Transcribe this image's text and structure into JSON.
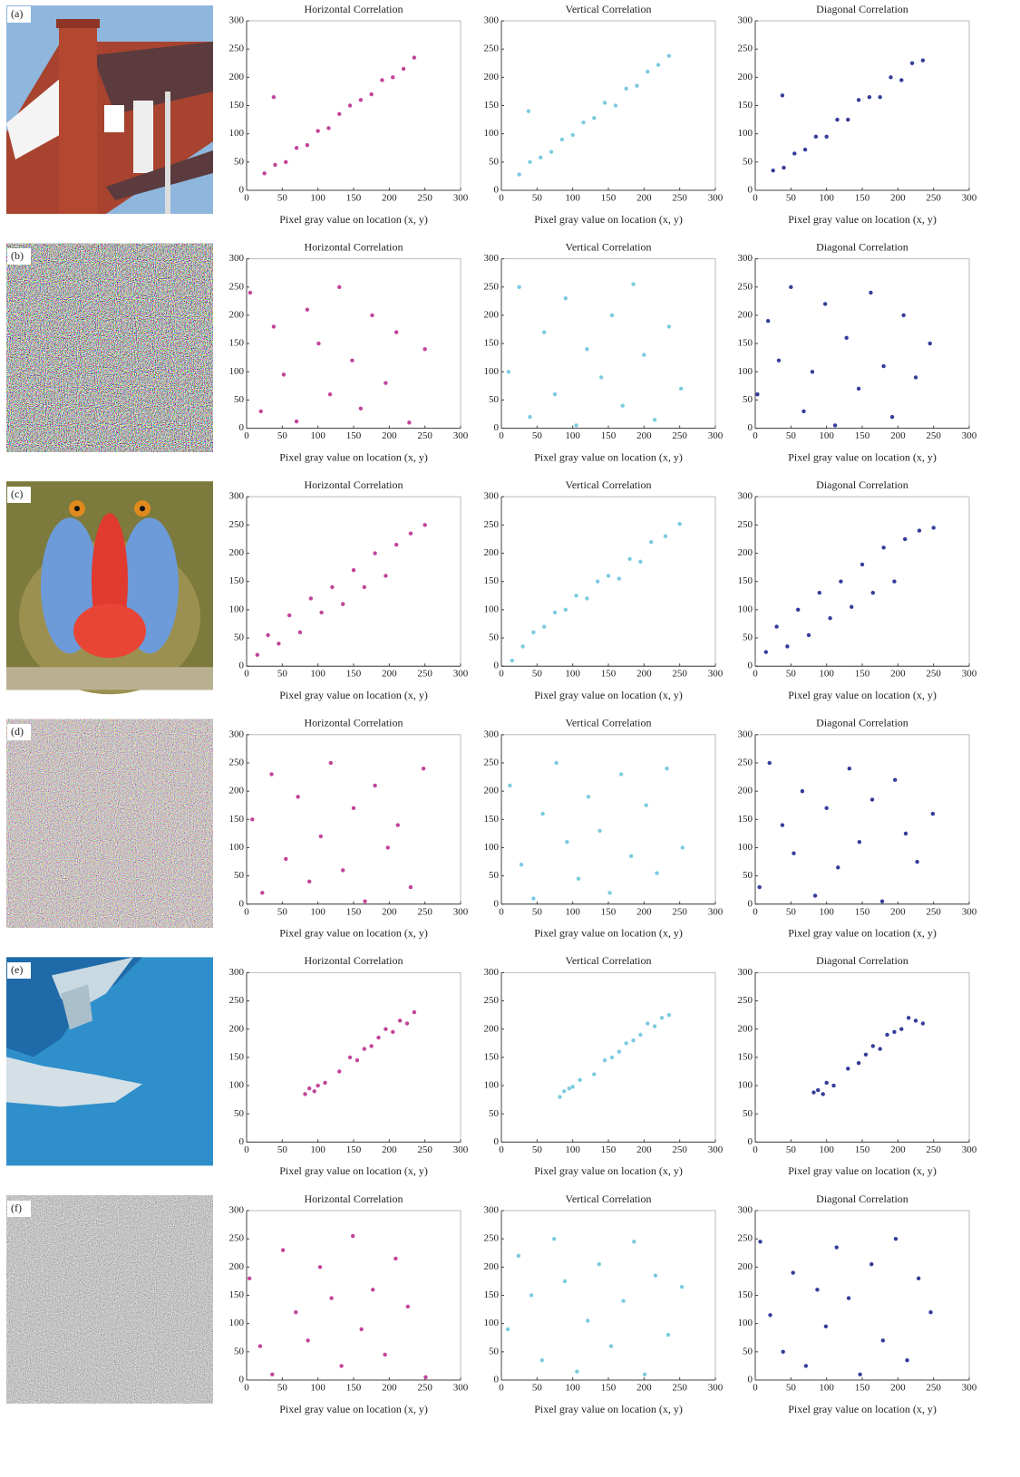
{
  "panels": [
    {
      "label": "(a)"
    },
    {
      "label": "(b)"
    },
    {
      "label": "(c)"
    },
    {
      "label": "(d)"
    },
    {
      "label": "(e)"
    },
    {
      "label": "(f)"
    }
  ],
  "chart_data": [
    {
      "type": "scatter",
      "title": "Horizontal Correlation",
      "x_label": "Pixel gray value on location (x, y)",
      "color": "#c2449a",
      "xlim": [
        0,
        300
      ],
      "ylim": [
        0,
        300
      ],
      "xticks": [
        0,
        50,
        100,
        150,
        200,
        250,
        300
      ],
      "yticks": [
        0,
        50,
        100,
        150,
        200,
        250,
        300
      ],
      "x": [
        25,
        40,
        55,
        70,
        85,
        100,
        115,
        130,
        145,
        160,
        175,
        190,
        205,
        220,
        235,
        38
      ],
      "values": [
        30,
        45,
        50,
        75,
        80,
        105,
        110,
        135,
        150,
        160,
        170,
        195,
        200,
        215,
        235,
        165
      ]
    },
    {
      "type": "scatter",
      "title": "Vertical Correlation",
      "x_label": "Pixel gray value on location (x, y)",
      "color": "#7ccbe0",
      "xlim": [
        0,
        300
      ],
      "ylim": [
        0,
        300
      ],
      "xticks": [
        0,
        50,
        100,
        150,
        200,
        250,
        300
      ],
      "yticks": [
        0,
        50,
        100,
        150,
        200,
        250,
        300
      ],
      "x": [
        25,
        40,
        55,
        70,
        85,
        100,
        115,
        130,
        145,
        160,
        175,
        190,
        205,
        220,
        235,
        38
      ],
      "values": [
        28,
        50,
        58,
        68,
        90,
        98,
        120,
        128,
        155,
        150,
        180,
        185,
        210,
        222,
        238,
        140
      ]
    },
    {
      "type": "scatter",
      "title": "Diagonal Correlation",
      "x_label": "Pixel gray value on location (x, y)",
      "color": "#353d9a",
      "xlim": [
        0,
        300
      ],
      "ylim": [
        0,
        300
      ],
      "xticks": [
        0,
        50,
        100,
        150,
        200,
        250,
        300
      ],
      "yticks": [
        0,
        50,
        100,
        150,
        200,
        250,
        300
      ],
      "x": [
        25,
        40,
        55,
        70,
        85,
        100,
        115,
        130,
        145,
        160,
        175,
        190,
        205,
        220,
        235,
        38
      ],
      "values": [
        35,
        40,
        65,
        72,
        95,
        95,
        125,
        125,
        160,
        165,
        165,
        200,
        195,
        225,
        230,
        168
      ]
    },
    {
      "type": "scatter",
      "title": "Horizontal Correlation",
      "x_label": "Pixel gray value on location (x, y)",
      "color": "#c2449a",
      "xlim": [
        0,
        300
      ],
      "ylim": [
        0,
        300
      ],
      "xticks": [
        0,
        50,
        100,
        150,
        200,
        250,
        300
      ],
      "yticks": [
        0,
        50,
        100,
        150,
        200,
        250,
        300
      ],
      "x": [
        5,
        20,
        38,
        52,
        70,
        85,
        101,
        117,
        130,
        148,
        160,
        176,
        195,
        210,
        228,
        250
      ],
      "values": [
        240,
        30,
        180,
        95,
        12,
        210,
        150,
        60,
        250,
        120,
        35,
        200,
        80,
        170,
        10,
        140
      ]
    },
    {
      "type": "scatter",
      "title": "Vertical Correlation",
      "x_label": "Pixel gray value on location (x, y)",
      "color": "#7ccbe0",
      "xlim": [
        0,
        300
      ],
      "ylim": [
        0,
        300
      ],
      "xticks": [
        0,
        50,
        100,
        150,
        200,
        250,
        300
      ],
      "yticks": [
        0,
        50,
        100,
        150,
        200,
        250,
        300
      ],
      "x": [
        10,
        25,
        40,
        60,
        75,
        90,
        105,
        120,
        140,
        155,
        170,
        185,
        200,
        215,
        235,
        252
      ],
      "values": [
        100,
        250,
        20,
        170,
        60,
        230,
        5,
        140,
        90,
        200,
        40,
        255,
        130,
        15,
        180,
        70
      ]
    },
    {
      "type": "scatter",
      "title": "Diagonal Correlation",
      "x_label": "Pixel gray value on location (x, y)",
      "color": "#353d9a",
      "xlim": [
        0,
        300
      ],
      "ylim": [
        0,
        300
      ],
      "xticks": [
        0,
        50,
        100,
        150,
        200,
        250,
        300
      ],
      "yticks": [
        0,
        50,
        100,
        150,
        200,
        250,
        300
      ],
      "x": [
        3,
        18,
        33,
        50,
        68,
        80,
        98,
        112,
        128,
        145,
        162,
        180,
        192,
        208,
        225,
        245
      ],
      "values": [
        60,
        190,
        120,
        250,
        30,
        100,
        220,
        5,
        160,
        70,
        240,
        110,
        20,
        200,
        90,
        150
      ]
    },
    {
      "type": "scatter",
      "title": "Horizontal Correlation",
      "x_label": "Pixel gray value on location (x, y)",
      "color": "#c2449a",
      "xlim": [
        0,
        300
      ],
      "ylim": [
        0,
        300
      ],
      "xticks": [
        0,
        50,
        100,
        150,
        200,
        250,
        300
      ],
      "yticks": [
        0,
        50,
        100,
        150,
        200,
        250,
        300
      ],
      "x": [
        15,
        30,
        45,
        60,
        75,
        90,
        105,
        120,
        135,
        150,
        165,
        180,
        195,
        210,
        230,
        250
      ],
      "values": [
        20,
        55,
        40,
        90,
        60,
        120,
        95,
        140,
        110,
        170,
        140,
        200,
        160,
        215,
        235,
        250
      ]
    },
    {
      "type": "scatter",
      "title": "Vertical Correlation",
      "x_label": "Pixel gray value on location (x, y)",
      "color": "#7ccbe0",
      "xlim": [
        0,
        300
      ],
      "ylim": [
        0,
        300
      ],
      "xticks": [
        0,
        50,
        100,
        150,
        200,
        250,
        300
      ],
      "yticks": [
        0,
        50,
        100,
        150,
        200,
        250,
        300
      ],
      "x": [
        15,
        30,
        45,
        60,
        75,
        90,
        105,
        120,
        135,
        150,
        165,
        180,
        195,
        210,
        230,
        250
      ],
      "values": [
        10,
        35,
        60,
        70,
        95,
        100,
        125,
        120,
        150,
        160,
        155,
        190,
        185,
        220,
        230,
        252
      ]
    },
    {
      "type": "scatter",
      "title": "Diagonal Correlation",
      "x_label": "Pixel gray value on location (x, y)",
      "color": "#353d9a",
      "xlim": [
        0,
        300
      ],
      "ylim": [
        0,
        300
      ],
      "xticks": [
        0,
        50,
        100,
        150,
        200,
        250,
        300
      ],
      "yticks": [
        0,
        50,
        100,
        150,
        200,
        250,
        300
      ],
      "x": [
        15,
        30,
        45,
        60,
        75,
        90,
        105,
        120,
        135,
        150,
        165,
        180,
        195,
        210,
        230,
        250
      ],
      "values": [
        25,
        70,
        35,
        100,
        55,
        130,
        85,
        150,
        105,
        180,
        130,
        210,
        150,
        225,
        240,
        245
      ]
    },
    {
      "type": "scatter",
      "title": "Horizontal Correlation",
      "x_label": "Pixel gray value on location (x, y)",
      "color": "#c2449a",
      "xlim": [
        0,
        300
      ],
      "ylim": [
        0,
        300
      ],
      "xticks": [
        0,
        50,
        100,
        150,
        200,
        250,
        300
      ],
      "yticks": [
        0,
        50,
        100,
        150,
        200,
        250,
        300
      ],
      "x": [
        8,
        22,
        35,
        55,
        72,
        88,
        104,
        118,
        135,
        150,
        166,
        180,
        198,
        212,
        230,
        248
      ],
      "values": [
        150,
        20,
        230,
        80,
        190,
        40,
        120,
        250,
        60,
        170,
        5,
        210,
        100,
        140,
        30,
        240
      ]
    },
    {
      "type": "scatter",
      "title": "Vertical Correlation",
      "x_label": "Pixel gray value on location (x, y)",
      "color": "#7ccbe0",
      "xlim": [
        0,
        300
      ],
      "ylim": [
        0,
        300
      ],
      "xticks": [
        0,
        50,
        100,
        150,
        200,
        250,
        300
      ],
      "yticks": [
        0,
        50,
        100,
        150,
        200,
        250,
        300
      ],
      "x": [
        12,
        28,
        45,
        58,
        77,
        92,
        108,
        122,
        138,
        152,
        168,
        182,
        203,
        218,
        232,
        254
      ],
      "values": [
        210,
        70,
        10,
        160,
        250,
        110,
        45,
        190,
        130,
        20,
        230,
        85,
        175,
        55,
        240,
        100
      ]
    },
    {
      "type": "scatter",
      "title": "Diagonal Correlation",
      "x_label": "Pixel gray value on location (x, y)",
      "color": "#353d9a",
      "xlim": [
        0,
        300
      ],
      "ylim": [
        0,
        300
      ],
      "xticks": [
        0,
        50,
        100,
        150,
        200,
        250,
        300
      ],
      "yticks": [
        0,
        50,
        100,
        150,
        200,
        250,
        300
      ],
      "x": [
        6,
        20,
        38,
        54,
        66,
        84,
        100,
        116,
        132,
        146,
        164,
        178,
        196,
        211,
        227,
        249
      ],
      "values": [
        30,
        250,
        140,
        90,
        200,
        15,
        170,
        65,
        240,
        110,
        185,
        5,
        220,
        125,
        75,
        160
      ]
    },
    {
      "type": "scatter",
      "title": "Horizontal Correlation",
      "x_label": "Pixel gray value on location (x, y)",
      "color": "#c2449a",
      "xlim": [
        0,
        300
      ],
      "ylim": [
        0,
        300
      ],
      "xticks": [
        0,
        50,
        100,
        150,
        200,
        250,
        300
      ],
      "yticks": [
        0,
        50,
        100,
        150,
        200,
        250,
        300
      ],
      "x": [
        82,
        88,
        95,
        100,
        110,
        130,
        145,
        155,
        165,
        175,
        185,
        195,
        205,
        215,
        225,
        235
      ],
      "values": [
        85,
        95,
        90,
        100,
        105,
        125,
        150,
        145,
        165,
        170,
        185,
        200,
        195,
        215,
        210,
        230
      ]
    },
    {
      "type": "scatter",
      "title": "Vertical Correlation",
      "x_label": "Pixel gray value on location (x, y)",
      "color": "#7ccbe0",
      "xlim": [
        0,
        300
      ],
      "ylim": [
        0,
        300
      ],
      "xticks": [
        0,
        50,
        100,
        150,
        200,
        250,
        300
      ],
      "yticks": [
        0,
        50,
        100,
        150,
        200,
        250,
        300
      ],
      "x": [
        82,
        88,
        95,
        100,
        110,
        130,
        145,
        155,
        165,
        175,
        185,
        195,
        205,
        215,
        225,
        235
      ],
      "values": [
        80,
        90,
        95,
        98,
        110,
        120,
        145,
        150,
        160,
        175,
        180,
        190,
        210,
        205,
        220,
        225
      ]
    },
    {
      "type": "scatter",
      "title": "Diagonal Correlation",
      "x_label": "Pixel gray value on location (x, y)",
      "color": "#353d9a",
      "xlim": [
        0,
        300
      ],
      "ylim": [
        0,
        300
      ],
      "xticks": [
        0,
        50,
        100,
        150,
        200,
        250,
        300
      ],
      "yticks": [
        0,
        50,
        100,
        150,
        200,
        250,
        300
      ],
      "x": [
        82,
        88,
        95,
        100,
        110,
        130,
        145,
        155,
        165,
        175,
        185,
        195,
        205,
        215,
        225,
        235
      ],
      "values": [
        88,
        92,
        85,
        105,
        100,
        130,
        140,
        155,
        170,
        165,
        190,
        195,
        200,
        220,
        215,
        210
      ]
    },
    {
      "type": "scatter",
      "title": "Horizontal Correlation",
      "x_label": "Pixel gray value on location (x, y)",
      "color": "#c2449a",
      "xlim": [
        0,
        300
      ],
      "ylim": [
        0,
        300
      ],
      "xticks": [
        0,
        50,
        100,
        150,
        200,
        250,
        300
      ],
      "yticks": [
        0,
        50,
        100,
        150,
        200,
        250,
        300
      ],
      "x": [
        4,
        19,
        36,
        51,
        69,
        86,
        103,
        119,
        133,
        149,
        161,
        177,
        194,
        209,
        226,
        251
      ],
      "values": [
        180,
        60,
        10,
        230,
        120,
        70,
        200,
        145,
        25,
        255,
        90,
        160,
        45,
        215,
        130,
        5
      ]
    },
    {
      "type": "scatter",
      "title": "Vertical Correlation",
      "x_label": "Pixel gray value on location (x, y)",
      "color": "#7ccbe0",
      "xlim": [
        0,
        300
      ],
      "ylim": [
        0,
        300
      ],
      "xticks": [
        0,
        50,
        100,
        150,
        200,
        250,
        300
      ],
      "yticks": [
        0,
        50,
        100,
        150,
        200,
        250,
        300
      ],
      "x": [
        9,
        24,
        42,
        57,
        74,
        89,
        106,
        121,
        137,
        154,
        171,
        186,
        201,
        216,
        234,
        253
      ],
      "values": [
        90,
        220,
        150,
        35,
        250,
        175,
        15,
        105,
        205,
        60,
        140,
        245,
        10,
        185,
        80,
        165
      ]
    },
    {
      "type": "scatter",
      "title": "Diagonal Correlation",
      "x_label": "Pixel gray value on location (x, y)",
      "color": "#353d9a",
      "xlim": [
        0,
        300
      ],
      "ylim": [
        0,
        300
      ],
      "xticks": [
        0,
        50,
        100,
        150,
        200,
        250,
        300
      ],
      "yticks": [
        0,
        50,
        100,
        150,
        200,
        250,
        300
      ],
      "x": [
        7,
        21,
        39,
        53,
        71,
        87,
        99,
        114,
        131,
        147,
        163,
        179,
        197,
        213,
        229,
        246
      ],
      "values": [
        245,
        115,
        50,
        190,
        25,
        160,
        95,
        235,
        145,
        10,
        205,
        70,
        250,
        35,
        180,
        120
      ]
    }
  ]
}
